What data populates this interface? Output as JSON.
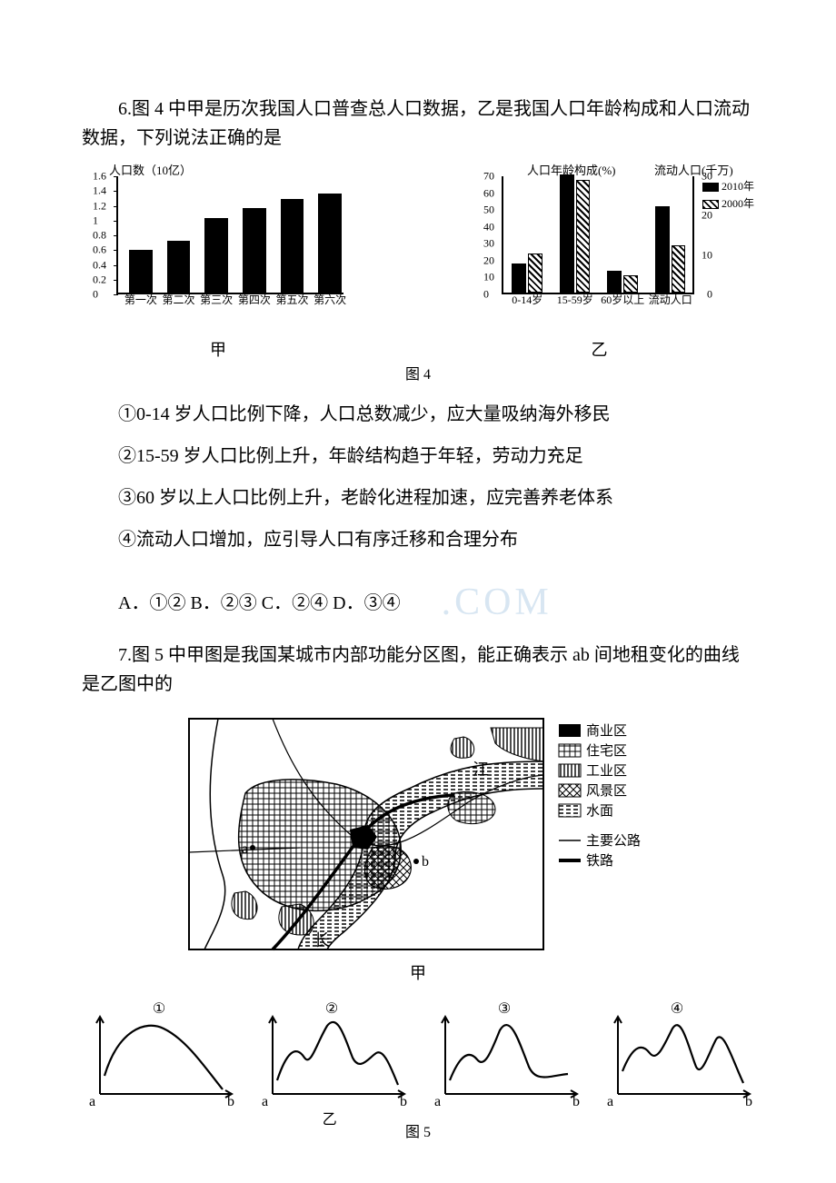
{
  "q6": {
    "stem": "6.图 4 中甲是历次我国人口普查总人口数据，乙是我国人口年龄构成和人口流动数据，下列说法正确的是",
    "chart_left": {
      "type": "bar",
      "y_axis_title": "人口数（10亿）",
      "ylim": [
        0,
        1.6
      ],
      "yticks": [
        0,
        0.2,
        0.4,
        0.6,
        0.8,
        1,
        1.2,
        1.4,
        1.6
      ],
      "categories": [
        "第一次",
        "第二次",
        "第三次",
        "第四次",
        "第五次",
        "第六次"
      ],
      "values": [
        0.58,
        0.7,
        1.01,
        1.14,
        1.27,
        1.34
      ],
      "bar_color": "#000000",
      "background_color": "#ffffff",
      "sublabel": "甲"
    },
    "chart_right": {
      "type": "grouped-bar-dual-axis",
      "left_title": "人口年龄构成(%)",
      "right_title": "流动人口(千万)",
      "left_ylim": [
        0,
        70
      ],
      "left_yticks": [
        0,
        10,
        20,
        30,
        40,
        50,
        60,
        70
      ],
      "right_ylim": [
        0,
        30
      ],
      "right_yticks": [
        0,
        10,
        20,
        30
      ],
      "groups": [
        "0-14岁",
        "15-59岁",
        "60岁以上",
        "流动人口"
      ],
      "series": [
        {
          "name": "2010年",
          "style": "solid",
          "color": "#000000",
          "values": {
            "0-14岁": 17,
            "15-59岁": 70,
            "60岁以上": 13,
            "流动人口": 22
          }
        },
        {
          "name": "2000年",
          "style": "hatch",
          "color": "#000000",
          "values": {
            "0-14岁": 23,
            "15-59岁": 67,
            "60岁以上": 10,
            "流动人口": 12
          }
        }
      ],
      "legend_labels": {
        "solid": "2010年",
        "hatch": "2000年"
      },
      "sublabel": "乙"
    },
    "fig_caption": "图 4",
    "stmt1": "①0-14 岁人口比例下降，人口总数减少，应大量吸纳海外移民",
    "stmt2": "②15-59 岁人口比例上升，年龄结构趋于年轻，劳动力充足",
    "stmt3": "③60 岁以上人口比例上升，老龄化进程加速，应完善养老体系",
    "stmt4": "④流动人口增加，应引导人口有序迁移和合理分布",
    "options": "A．①② B．②③ C．②④ D．③④",
    "watermark": ".COM"
  },
  "q7": {
    "stem": "7.图 5 中甲图是我国某城市内部功能分区图，能正确表示 ab 间地租变化的曲线是乙图中的",
    "map": {
      "labels": {
        "river1": "江",
        "river2": "长",
        "a": "a",
        "b": "b"
      },
      "legend": [
        {
          "swatch": "solid",
          "label": "商业区"
        },
        {
          "swatch": "grid",
          "label": "住宅区"
        },
        {
          "swatch": "vlines",
          "label": "工业区"
        },
        {
          "swatch": "cross",
          "label": "风景区"
        },
        {
          "swatch": "dash",
          "label": "水面"
        },
        {
          "swatch": "thin-line",
          "label": "主要公路"
        },
        {
          "swatch": "thick-line",
          "label": "铁路"
        }
      ],
      "caption": "甲"
    },
    "curves": {
      "labels": [
        "①",
        "②",
        "③",
        "④"
      ],
      "a": "a",
      "b": "b",
      "sublabel": "乙"
    },
    "fig_caption": "图 5"
  }
}
